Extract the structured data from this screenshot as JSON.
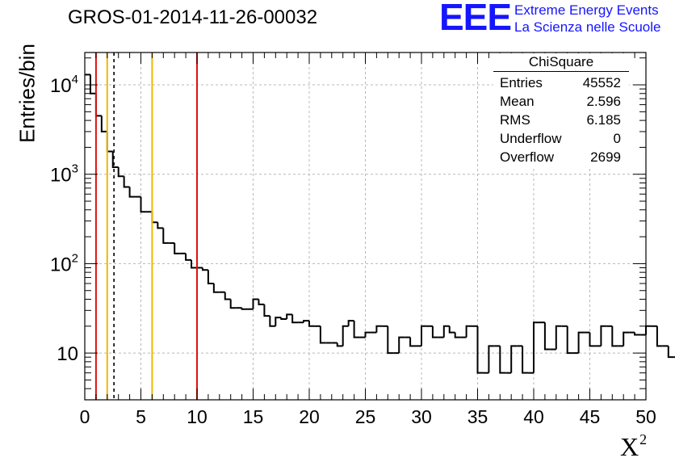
{
  "header": {
    "title": "GROS-01-2014-11-26-00032"
  },
  "logo": {
    "mark": "EEE",
    "line1": "Extreme Energy Events",
    "line2": "La Scienza nelle Scuole",
    "color": "#1515ff"
  },
  "stats": {
    "title": "ChiSquare",
    "rows": [
      {
        "label": "Entries",
        "value": "45552"
      },
      {
        "label": "Mean",
        "value": "2.596"
      },
      {
        "label": "RMS",
        "value": "6.185"
      },
      {
        "label": "Underflow",
        "value": "0"
      },
      {
        "label": "Overflow",
        "value": "2699"
      }
    ]
  },
  "chart_data": {
    "type": "histogram",
    "title": "GROS-01-2014-11-26-00032",
    "xlabel": "X",
    "xlabel_superscript": "2",
    "ylabel": "Entries/bin",
    "xlim": [
      0,
      50
    ],
    "ylim": [
      3,
      23000
    ],
    "yscale": "log",
    "grid": true,
    "bin_width": 0.5,
    "x_ticks": [
      "0",
      "5",
      "10",
      "15",
      "20",
      "25",
      "30",
      "35",
      "40",
      "45",
      "50"
    ],
    "y_ticks": [
      {
        "value": 10,
        "base": "10",
        "exp": ""
      },
      {
        "value": 100,
        "base": "10",
        "exp": "2"
      },
      {
        "value": 1000,
        "base": "10",
        "exp": "3"
      },
      {
        "value": 10000,
        "base": "10",
        "exp": "4"
      }
    ],
    "values": [
      13000,
      8000,
      4500,
      3000,
      1800,
      1200,
      950,
      720,
      560,
      560,
      380,
      380,
      290,
      250,
      170,
      170,
      130,
      130,
      110,
      90,
      90,
      85,
      60,
      48,
      48,
      40,
      32,
      32,
      31,
      31,
      40,
      35,
      26,
      20,
      25,
      24,
      27,
      22,
      22,
      23,
      20,
      20,
      13,
      13,
      13,
      12,
      20,
      23,
      15,
      15,
      17,
      17,
      20,
      20,
      10,
      10,
      15,
      15,
      12,
      12,
      20,
      20,
      15,
      15,
      20,
      17,
      15,
      15,
      20,
      20,
      6,
      6,
      12,
      12,
      6,
      6,
      12,
      12,
      6,
      6,
      22,
      22,
      11,
      11,
      20,
      20,
      10,
      10,
      17,
      17,
      12,
      12,
      20,
      20,
      12,
      12,
      17,
      17,
      16,
      16,
      20,
      20,
      12,
      12,
      9,
      9,
      17,
      17,
      12,
      12,
      19,
      19,
      10,
      10,
      20,
      20,
      20,
      20,
      16,
      16,
      10,
      10,
      10,
      10,
      17,
      17,
      8,
      8,
      20,
      20,
      12,
      12,
      17,
      17,
      11,
      11,
      16,
      16,
      14,
      14,
      24,
      24,
      14,
      14,
      16,
      16,
      18,
      18,
      23,
      23,
      20,
      20,
      19,
      19,
      20,
      20,
      15,
      15,
      22,
      22,
      22,
      22,
      28,
      28,
      20,
      20,
      22,
      22,
      24,
      24,
      18,
      18,
      26,
      26,
      21,
      21,
      23,
      23,
      20,
      20,
      30,
      30,
      24,
      24,
      27,
      27,
      20,
      20,
      25,
      25,
      28,
      28,
      22,
      22,
      32,
      32,
      25,
      25,
      24,
      24,
      28,
      28,
      23,
      23,
      29,
      29,
      27,
      27,
      30,
      30,
      27,
      27,
      30,
      30,
      20,
      20,
      25,
      25,
      30,
      30,
      12,
      12,
      30,
      30,
      35,
      35,
      30,
      30,
      17,
      17,
      24,
      24,
      30,
      30,
      26,
      26,
      28,
      28,
      22,
      22,
      24,
      24,
      28,
      28,
      20,
      20,
      22,
      22,
      30,
      30,
      27,
      27,
      26,
      26,
      30,
      30,
      28,
      28,
      23,
      23,
      27,
      27,
      25,
      25,
      29,
      29,
      24,
      24,
      22,
      22,
      28,
      28,
      23,
      23,
      30,
      30,
      24,
      24,
      27,
      27,
      30,
      30,
      20,
      20,
      22,
      22,
      25,
      25,
      27,
      27,
      28,
      28,
      25,
      25,
      23,
      23,
      20,
      20,
      30,
      30,
      22,
      22,
      25,
      25,
      29,
      29,
      26,
      26,
      28,
      28,
      30,
      30,
      22,
      22,
      24,
      24,
      29,
      29,
      27,
      27,
      22,
      22,
      26,
      26,
      20,
      20,
      28,
      28,
      25,
      25,
      21,
      21,
      24,
      24,
      27,
      27,
      25,
      25,
      30,
      30,
      20,
      20,
      28,
      28,
      24,
      24,
      26,
      26,
      28,
      28,
      22,
      22,
      27,
      27,
      25,
      25,
      23,
      23,
      30,
      30,
      28,
      28,
      12,
      12,
      30,
      30
    ],
    "vlines": [
      {
        "x": 1.0,
        "color": "#e01010",
        "style": "solid"
      },
      {
        "x": 2.0,
        "color": "#f0b800",
        "style": "solid"
      },
      {
        "x": 2.6,
        "color": "#000000",
        "style": "dashed"
      },
      {
        "x": 6.0,
        "color": "#f0b800",
        "style": "solid"
      },
      {
        "x": 10.0,
        "color": "#e01010",
        "style": "solid"
      }
    ]
  }
}
